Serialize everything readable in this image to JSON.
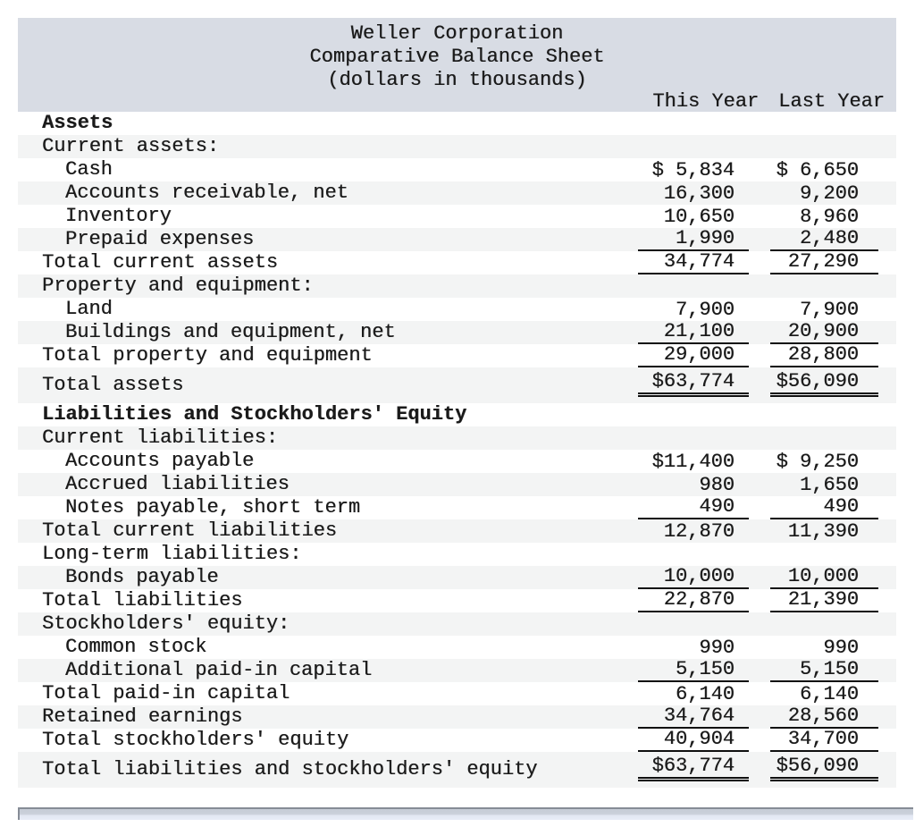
{
  "header": {
    "title_lines": [
      "Weller Corporation",
      "Comparative Balance Sheet",
      "(dollars in thousands)"
    ],
    "col_this": "This Year",
    "col_last": "Last Year"
  },
  "table": {
    "rows": [
      {
        "label": "Assets",
        "indent": 0,
        "bold": true,
        "v1": "",
        "v2": "",
        "rule": null
      },
      {
        "label": "Current assets:",
        "indent": 0,
        "bold": false,
        "v1": "",
        "v2": "",
        "rule": null
      },
      {
        "label": "Cash",
        "indent": 1,
        "bold": false,
        "v1": "$ 5,834",
        "v2": "$ 6,650",
        "rule": null
      },
      {
        "label": "Accounts receivable, net",
        "indent": 1,
        "bold": false,
        "v1": "16,300",
        "v2": "9,200",
        "rule": null
      },
      {
        "label": "Inventory",
        "indent": 1,
        "bold": false,
        "v1": "10,650",
        "v2": "8,960",
        "rule": null
      },
      {
        "label": "Prepaid expenses",
        "indent": 1,
        "bold": false,
        "v1": "1,990",
        "v2": "2,480",
        "rule": "single"
      },
      {
        "label": "Total current assets",
        "indent": 0,
        "bold": false,
        "v1": "34,774",
        "v2": "27,290",
        "rule": "single"
      },
      {
        "label": "Property and equipment:",
        "indent": 0,
        "bold": false,
        "v1": "",
        "v2": "",
        "rule": null
      },
      {
        "label": "Land",
        "indent": 1,
        "bold": false,
        "v1": "7,900",
        "v2": "7,900",
        "rule": null
      },
      {
        "label": "Buildings and equipment, net",
        "indent": 1,
        "bold": false,
        "v1": "21,100",
        "v2": "20,900",
        "rule": "single"
      },
      {
        "label": "Total property and equipment",
        "indent": 0,
        "bold": false,
        "v1": "29,000",
        "v2": "28,800",
        "rule": "single"
      },
      {
        "label": "Total assets",
        "indent": 0,
        "bold": false,
        "v1": "$63,774",
        "v2": "$56,090",
        "rule": "double"
      },
      {
        "label": "Liabilities and Stockholders' Equity",
        "indent": 0,
        "bold": true,
        "v1": "",
        "v2": "",
        "rule": null
      },
      {
        "label": "Current liabilities:",
        "indent": 0,
        "bold": false,
        "v1": "",
        "v2": "",
        "rule": null
      },
      {
        "label": "Accounts payable",
        "indent": 1,
        "bold": false,
        "v1": "$11,400",
        "v2": "$ 9,250",
        "rule": null
      },
      {
        "label": "Accrued liabilities",
        "indent": 1,
        "bold": false,
        "v1": "980",
        "v2": "1,650",
        "rule": null
      },
      {
        "label": "Notes payable, short term",
        "indent": 1,
        "bold": false,
        "v1": "490",
        "v2": "490",
        "rule": "single"
      },
      {
        "label": "Total current liabilities",
        "indent": 0,
        "bold": false,
        "v1": "12,870",
        "v2": "11,390",
        "rule": null
      },
      {
        "label": "Long-term liabilities:",
        "indent": 0,
        "bold": false,
        "v1": "",
        "v2": "",
        "rule": null
      },
      {
        "label": "Bonds payable",
        "indent": 1,
        "bold": false,
        "v1": "10,000",
        "v2": "10,000",
        "rule": "single"
      },
      {
        "label": "Total liabilities",
        "indent": 0,
        "bold": false,
        "v1": "22,870",
        "v2": "21,390",
        "rule": "single"
      },
      {
        "label": "Stockholders' equity:",
        "indent": 0,
        "bold": false,
        "v1": "",
        "v2": "",
        "rule": null
      },
      {
        "label": "Common stock",
        "indent": 1,
        "bold": false,
        "v1": "990",
        "v2": "990",
        "rule": null
      },
      {
        "label": "Additional paid-in capital",
        "indent": 1,
        "bold": false,
        "v1": "5,150",
        "v2": "5,150",
        "rule": "single"
      },
      {
        "label": "Total paid-in capital",
        "indent": 0,
        "bold": false,
        "v1": "6,140",
        "v2": "6,140",
        "rule": null
      },
      {
        "label": "Retained earnings",
        "indent": 0,
        "bold": false,
        "v1": "34,764",
        "v2": "28,560",
        "rule": "single"
      },
      {
        "label": "Total stockholders' equity",
        "indent": 0,
        "bold": false,
        "v1": "40,904",
        "v2": "34,700",
        "rule": "single"
      },
      {
        "label": "Total liabilities and stockholders' equity",
        "indent": 0,
        "bold": false,
        "v1": "$63,774",
        "v2": "$56,090",
        "rule": "double"
      }
    ]
  },
  "colors": {
    "header_bg": "#d8dce4",
    "row_stripe": "#f3f4f4",
    "rule": "#0f0f0f",
    "text": "#1a1a1a",
    "scrollbar_fill": "#ccd2dc",
    "scrollbar_border": "#868c96"
  }
}
